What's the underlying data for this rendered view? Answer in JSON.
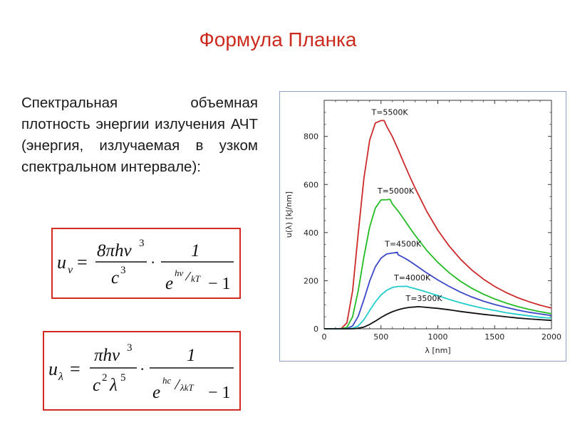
{
  "slide": {
    "title": "Формула Планка",
    "description": "Спектральная объемная плотность энергии излучения АЧТ (энергия, излучаемая в узком спектральном интервале):"
  },
  "formulas": {
    "nu": {
      "lhs_symbol": "u",
      "lhs_subscript": "ν",
      "eq": "=",
      "num1": "8πhν",
      "num1_exp": "3",
      "den1": "c",
      "den1_exp": "3",
      "dot": "·",
      "num2": "1",
      "den2_base": "e",
      "den2_exp_num": "hν",
      "den2_exp_den": "kT",
      "den2_minus": "− 1"
    },
    "lambda": {
      "lhs_symbol": "u",
      "lhs_subscript": "λ",
      "eq": "=",
      "num1": "πhν",
      "num1_exp": "3",
      "den1_a": "c",
      "den1_a_exp": "2",
      "den1_b": "λ",
      "den1_b_exp": "5",
      "dot": "·",
      "num2": "1",
      "den2_base": "e",
      "den2_exp_num": "hc",
      "den2_exp_den": "λkT",
      "den2_minus": "− 1"
    }
  },
  "chart_data": {
    "type": "line",
    "xlabel": "λ [nm]",
    "ylabel": "u(λ) [kJ/nm]",
    "xlim": [
      0,
      2000
    ],
    "ylim": [
      0,
      950
    ],
    "xticks": [
      0,
      500,
      1000,
      1500,
      2000
    ],
    "yticks": [
      0,
      200,
      400,
      600,
      800
    ],
    "x": [
      150,
      200,
      250,
      300,
      350,
      400,
      450,
      500,
      550,
      600,
      650,
      700,
      750,
      800,
      900,
      1000,
      1100,
      1200,
      1300,
      1400,
      1500,
      1600,
      1700,
      1800,
      1900,
      2000
    ],
    "series": [
      {
        "name": "T=5500K",
        "color": "#cc2a2a",
        "peak": [
          527,
          866
        ],
        "values": [
          1,
          25,
          158,
          398,
          627,
          784,
          856,
          866,
          842,
          799,
          746,
          691,
          637,
          585,
          490,
          410,
          344,
          289,
          244,
          207,
          176,
          151,
          130,
          113,
          98,
          86
        ]
      },
      {
        "name": "T=5000K",
        "color": "#22bb22",
        "peak": [
          580,
          538
        ],
        "values": [
          0,
          6,
          50,
          159,
          300,
          423,
          502,
          536,
          537,
          519,
          490,
          457,
          422,
          389,
          327,
          276,
          233,
          197,
          168,
          144,
          124,
          107,
          93,
          81,
          71,
          63
        ]
      },
      {
        "name": "T=4500K",
        "color": "#3a48c8",
        "peak": [
          644,
          318
        ],
        "values": [
          0,
          1,
          12,
          52,
          122,
          198,
          258,
          294,
          311,
          315,
          308,
          296,
          282,
          266,
          233,
          203,
          176,
          152,
          132,
          115,
          101,
          89,
          78,
          69,
          62,
          55
        ]
      },
      {
        "name": "T=4000K",
        "color": "#22cccc",
        "peak": [
          725,
          177
        ],
        "values": [
          0,
          0,
          2,
          12,
          38,
          76,
          112,
          141,
          160,
          172,
          176,
          176,
          173,
          167,
          153,
          138,
          122,
          108,
          96,
          85,
          76,
          67,
          60,
          54,
          48,
          44
        ]
      },
      {
        "name": "T=3500K",
        "color": "#111111",
        "peak": [
          828,
          92
        ],
        "values": [
          0,
          0,
          0,
          2,
          7,
          18,
          32,
          47,
          60,
          71,
          79,
          85,
          89,
          91,
          89,
          85,
          79,
          72,
          66,
          60,
          55,
          50,
          45,
          41,
          38,
          35
        ]
      }
    ]
  }
}
